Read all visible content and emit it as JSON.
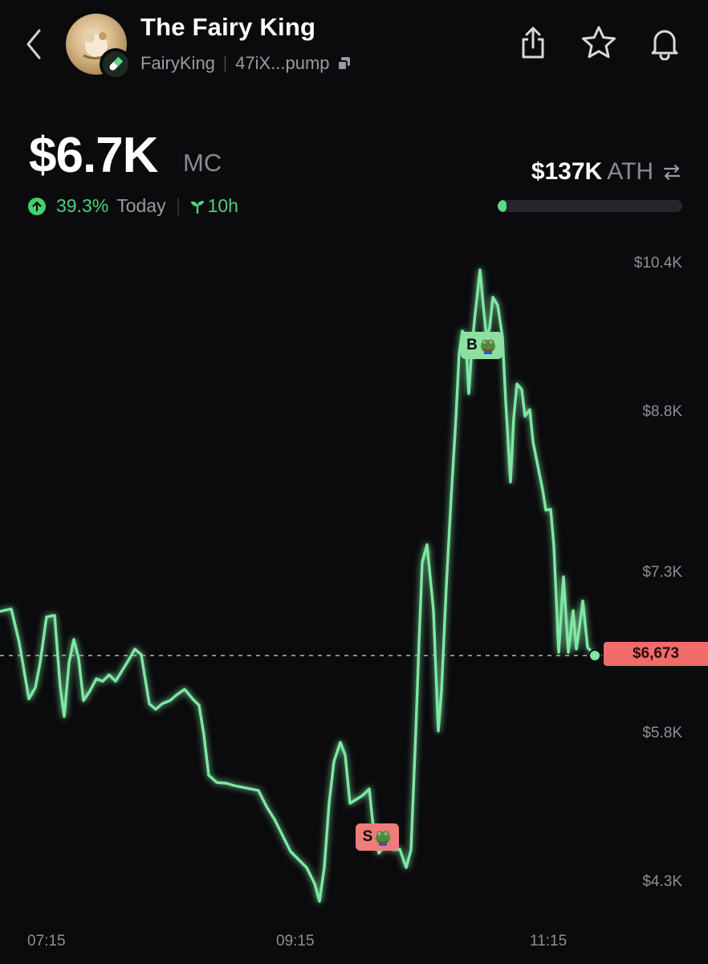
{
  "header": {
    "title": "The Fairy King",
    "ticker": "FairyKing",
    "address": "47iX...pump"
  },
  "market": {
    "mc_value": "$6.7K",
    "mc_unit": "MC",
    "change_pct": "39.3%",
    "change_period": "Today",
    "age": "10h",
    "ath_value": "$137K",
    "ath_label": "ATH",
    "ath_progress": 0.049
  },
  "chart": {
    "y_labels": [
      "$10.4K",
      "$8.8K",
      "$7.3K",
      "$5.8K",
      "$4.3K"
    ],
    "x_labels": [
      "07:15",
      "09:15",
      "11:15"
    ],
    "current_price": "$6,673",
    "buy_marker": "B",
    "sell_marker": "S"
  },
  "colors": {
    "line": "#6fe49a",
    "positive": "#4fd07a",
    "price_tag": "#f26b6b"
  },
  "icons": [
    "chevron-left-icon",
    "pill-icon",
    "copy-icon",
    "share-icon",
    "star-icon",
    "bell-icon",
    "arrow-up-icon",
    "sprout-icon",
    "swap-icon",
    "frog-icon"
  ]
}
